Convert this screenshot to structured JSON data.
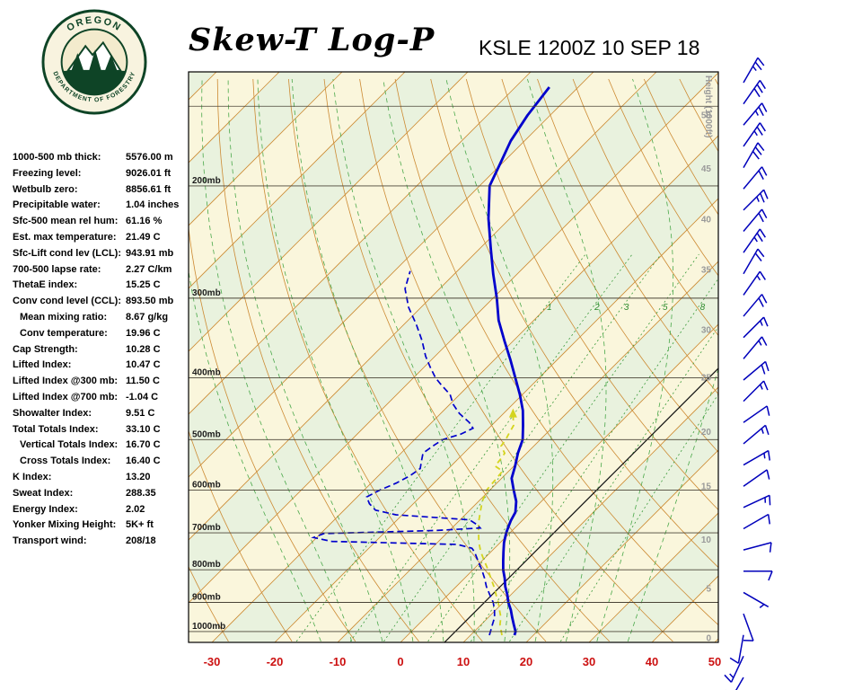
{
  "header": {
    "title": "Skew-T Log-P",
    "station_line": "KSLE 1200Z 10 SEP 18"
  },
  "logo": {
    "top_text": "OREGON",
    "bottom_text": "DEPARTMENT OF FORESTRY"
  },
  "indices": [
    {
      "label": "1000-500 mb thick:",
      "value": "5576.00 m",
      "indent": false
    },
    {
      "label": "Freezing level:",
      "value": "9026.01 ft",
      "indent": false
    },
    {
      "label": "Wetbulb zero:",
      "value": "8856.61 ft",
      "indent": false
    },
    {
      "label": "Precipitable water:",
      "value": "1.04 inches",
      "indent": false
    },
    {
      "label": "Sfc-500 mean rel hum:",
      "value": "61.16 %",
      "indent": false
    },
    {
      "label": "Est. max temperature:",
      "value": "21.49 C",
      "indent": false
    },
    {
      "label": "Sfc-Lift cond lev (LCL):",
      "value": "943.91 mb",
      "indent": false
    },
    {
      "label": "700-500 lapse rate:",
      "value": "2.27 C/km",
      "indent": false
    },
    {
      "label": "ThetaE index:",
      "value": "15.25 C",
      "indent": false
    },
    {
      "label": "Conv cond level (CCL):",
      "value": "893.50 mb",
      "indent": false
    },
    {
      "label": "Mean mixing ratio:",
      "value": "8.67 g/kg",
      "indent": true
    },
    {
      "label": "Conv temperature:",
      "value": "19.96 C",
      "indent": true
    },
    {
      "label": "Cap Strength:",
      "value": "10.28 C",
      "indent": false
    },
    {
      "label": "Lifted Index:",
      "value": "10.47 C",
      "indent": false
    },
    {
      "label": "Lifted Index @300 mb:",
      "value": "11.50 C",
      "indent": false
    },
    {
      "label": "Lifted Index @700 mb:",
      "value": "-1.04 C",
      "indent": false
    },
    {
      "label": "Showalter Index:",
      "value": "9.51 C",
      "indent": false
    },
    {
      "label": "Total Totals Index:",
      "value": "33.10 C",
      "indent": false
    },
    {
      "label": "Vertical Totals Index:",
      "value": "16.70 C",
      "indent": true
    },
    {
      "label": "Cross Totals Index:",
      "value": "16.40 C",
      "indent": true
    },
    {
      "label": "K Index:",
      "value": "13.20",
      "indent": false
    },
    {
      "label": "Sweat Index:",
      "value": "288.35",
      "indent": false
    },
    {
      "label": "Energy Index:",
      "value": "2.02",
      "indent": false
    },
    {
      "label": "Yonker Mixing Height:",
      "value": "5K+ ft",
      "indent": false
    },
    {
      "label": "Transport wind:",
      "value": "208/18",
      "indent": false
    }
  ],
  "chart_data": {
    "type": "skewt-log-p",
    "title": "Skew-T Log-P",
    "station": "KSLE",
    "valid_time": "1200Z 10 SEP 18",
    "pressure_axis": {
      "top_mb": 135,
      "bottom_mb": 1036,
      "labeled_lines_mb": [
        200,
        300,
        400,
        500,
        600,
        700,
        800,
        900,
        1000
      ],
      "unlabeled_lines_mb": [
        150
      ],
      "label_suffix": "mb"
    },
    "temp_axis": {
      "ticks_c": [
        -30,
        -20,
        -10,
        0,
        10,
        20,
        30,
        40,
        50
      ],
      "color": "#cc1111"
    },
    "height_axis": {
      "label": "Height (1000ft)",
      "ticks": [
        {
          "label": "50",
          "p_mb": 155
        },
        {
          "label": "45",
          "p_mb": 188
        },
        {
          "label": "40",
          "p_mb": 226
        },
        {
          "label": "35",
          "p_mb": 271
        },
        {
          "label": "30",
          "p_mb": 337
        },
        {
          "label": "25",
          "p_mb": 400
        },
        {
          "label": "20",
          "p_mb": 487
        },
        {
          "label": "15",
          "p_mb": 592
        },
        {
          "label": "10",
          "p_mb": 718
        },
        {
          "label": "5",
          "p_mb": 857
        },
        {
          "label": "0",
          "p_mb": 1025
        }
      ]
    },
    "isotherms": {
      "min_c": -130,
      "max_c": 60,
      "step_c": 10,
      "color": "#cc8a33"
    },
    "band_colors": [
      "#faf6dc",
      "#e9f2de"
    ],
    "dry_adiabats": {
      "theta_c": [
        -30,
        -20,
        -10,
        0,
        10,
        20,
        30,
        40,
        50,
        60,
        70,
        80,
        90,
        100,
        110,
        120,
        130,
        140,
        150,
        160
      ],
      "color": "#cc8a33"
    },
    "moist_adiabats": {
      "start_temps_c": [
        -15,
        -10,
        -5,
        0,
        5,
        10,
        15,
        20,
        25,
        30,
        35
      ],
      "color": "#4aa84a"
    },
    "mixing_ratio": {
      "lines_gkg": [
        1,
        2,
        3,
        5,
        8,
        12,
        20
      ],
      "labeled_gkg": [
        1,
        2,
        3,
        5,
        8
      ],
      "label_at_mb": 310,
      "color": "#3a9a3a"
    },
    "reference_isotherm_c": 7,
    "sounding": {
      "temperature": {
        "color": "#0000cc",
        "points_p_t": [
          [
            1013,
            17.0
          ],
          [
            1000,
            16.6
          ],
          [
            975,
            15.2
          ],
          [
            950,
            13.8
          ],
          [
            925,
            12.4
          ],
          [
            900,
            10.8
          ],
          [
            875,
            9.4
          ],
          [
            850,
            7.8
          ],
          [
            825,
            6.4
          ],
          [
            800,
            4.8
          ],
          [
            775,
            3.4
          ],
          [
            750,
            2.0
          ],
          [
            725,
            0.6
          ],
          [
            700,
            -0.6
          ],
          [
            685,
            -1.2
          ],
          [
            670,
            -1.8
          ],
          [
            650,
            -2.4
          ],
          [
            625,
            -4.0
          ],
          [
            600,
            -6.2
          ],
          [
            575,
            -8.4
          ],
          [
            550,
            -9.8
          ],
          [
            525,
            -11.4
          ],
          [
            500,
            -12.8
          ],
          [
            475,
            -15.0
          ],
          [
            450,
            -17.4
          ],
          [
            425,
            -20.4
          ],
          [
            400,
            -23.8
          ],
          [
            375,
            -27.4
          ],
          [
            350,
            -31.4
          ],
          [
            325,
            -35.6
          ],
          [
            300,
            -39.4
          ],
          [
            275,
            -43.8
          ],
          [
            250,
            -48.4
          ],
          [
            225,
            -53.4
          ],
          [
            200,
            -58.4
          ],
          [
            185,
            -60.2
          ],
          [
            170,
            -62.2
          ],
          [
            155,
            -63.6
          ],
          [
            140,
            -64.6
          ]
        ]
      },
      "dewpoint": {
        "color": "#0000cc",
        "points_p_t": [
          [
            1013,
            13.0
          ],
          [
            1000,
            12.6
          ],
          [
            975,
            11.8
          ],
          [
            950,
            11.0
          ],
          [
            925,
            9.8
          ],
          [
            900,
            8.4
          ],
          [
            875,
            6.6
          ],
          [
            850,
            4.8
          ],
          [
            825,
            3.2
          ],
          [
            800,
            1.4
          ],
          [
            775,
            -0.6
          ],
          [
            750,
            -2.6
          ],
          [
            740,
            -3.6
          ],
          [
            730,
            -6.5
          ],
          [
            722,
            -27.0
          ],
          [
            712,
            -30.5
          ],
          [
            702,
            -29.5
          ],
          [
            694,
            -12.0
          ],
          [
            688,
            -5.5
          ],
          [
            680,
            -6.5
          ],
          [
            668,
            -8.5
          ],
          [
            656,
            -21.0
          ],
          [
            645,
            -25.0
          ],
          [
            630,
            -27.0
          ],
          [
            615,
            -28.5
          ],
          [
            600,
            -27.5
          ],
          [
            585,
            -26.0
          ],
          [
            570,
            -25.0
          ],
          [
            555,
            -24.5
          ],
          [
            540,
            -25.5
          ],
          [
            525,
            -26.5
          ],
          [
            510,
            -26.0
          ],
          [
            500,
            -25.5
          ],
          [
            490,
            -23.5
          ],
          [
            480,
            -22.5
          ],
          [
            470,
            -24.0
          ],
          [
            455,
            -27.0
          ],
          [
            440,
            -29.5
          ],
          [
            425,
            -31.5
          ],
          [
            410,
            -34.5
          ],
          [
            400,
            -36.5
          ],
          [
            385,
            -39.0
          ],
          [
            370,
            -41.5
          ],
          [
            350,
            -44.5
          ],
          [
            330,
            -48.0
          ],
          [
            310,
            -52.0
          ],
          [
            290,
            -55.5
          ],
          [
            272,
            -57.5
          ]
        ]
      },
      "parcel": {
        "color": "#d4d41e",
        "points_p_t": [
          [
            1013,
            15.0
          ],
          [
            975,
            13.0
          ],
          [
            950,
            12.0
          ],
          [
            925,
            10.6
          ],
          [
            900,
            9.2
          ],
          [
            875,
            7.6
          ],
          [
            850,
            6.0
          ],
          [
            825,
            4.2
          ],
          [
            800,
            2.4
          ],
          [
            775,
            0.4
          ],
          [
            750,
            -1.6
          ],
          [
            725,
            -3.4
          ],
          [
            700,
            -5.0
          ],
          [
            675,
            -6.6
          ],
          [
            650,
            -8.0
          ],
          [
            625,
            -9.4
          ],
          [
            600,
            -10.5
          ],
          [
            575,
            -10.8
          ],
          [
            560,
            -11.0
          ],
          [
            550,
            -13.0
          ],
          [
            537,
            -13.2
          ],
          [
            525,
            -13.5
          ],
          [
            512,
            -15.2
          ],
          [
            500,
            -15.5
          ],
          [
            488,
            -16.0
          ],
          [
            475,
            -16.5
          ],
          [
            460,
            -18.0
          ]
        ]
      }
    },
    "wind_barbs": {
      "color": "#0000bb",
      "levels": [
        [
          30,
          25
        ],
        [
          35,
          30
        ],
        [
          40,
          25
        ],
        [
          35,
          25
        ],
        [
          30,
          30
        ],
        [
          40,
          20
        ],
        [
          45,
          25
        ],
        [
          40,
          20
        ],
        [
          35,
          25
        ],
        [
          30,
          20
        ],
        [
          35,
          15
        ],
        [
          40,
          20
        ],
        [
          45,
          15
        ],
        [
          40,
          15
        ],
        [
          50,
          20
        ],
        [
          45,
          15
        ],
        [
          55,
          10
        ],
        [
          50,
          15
        ],
        [
          60,
          15
        ],
        [
          55,
          10
        ],
        [
          65,
          15
        ],
        [
          60,
          10
        ],
        [
          75,
          10
        ],
        [
          90,
          8
        ],
        [
          120,
          5
        ],
        [
          160,
          8
        ],
        [
          190,
          12
        ],
        [
          205,
          15
        ],
        [
          210,
          18
        ]
      ]
    }
  }
}
